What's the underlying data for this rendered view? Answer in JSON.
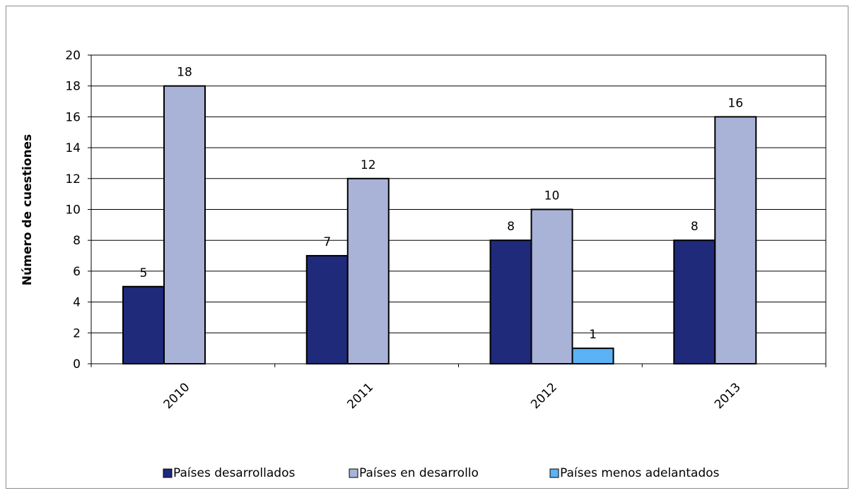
{
  "chart_data": {
    "type": "bar",
    "title": "",
    "xlabel": "",
    "ylabel": "Número de cuestiones",
    "categories": [
      "2010",
      "2011",
      "2012",
      "2013"
    ],
    "series": [
      {
        "name": "Países desarrollados",
        "color": "#1F2A7A",
        "values": [
          5,
          7,
          8,
          8
        ]
      },
      {
        "name": "Países en desarrollo",
        "color": "#A9B3D8",
        "values": [
          18,
          12,
          10,
          16
        ]
      },
      {
        "name": "Países menos adelantados",
        "color": "#5BB2F5",
        "values": [
          null,
          null,
          1,
          null
        ]
      }
    ],
    "ylim": [
      0,
      20
    ],
    "yticks": [
      0,
      2,
      4,
      6,
      8,
      10,
      12,
      14,
      16,
      18,
      20
    ],
    "grid": true,
    "legend_position": "bottom"
  }
}
